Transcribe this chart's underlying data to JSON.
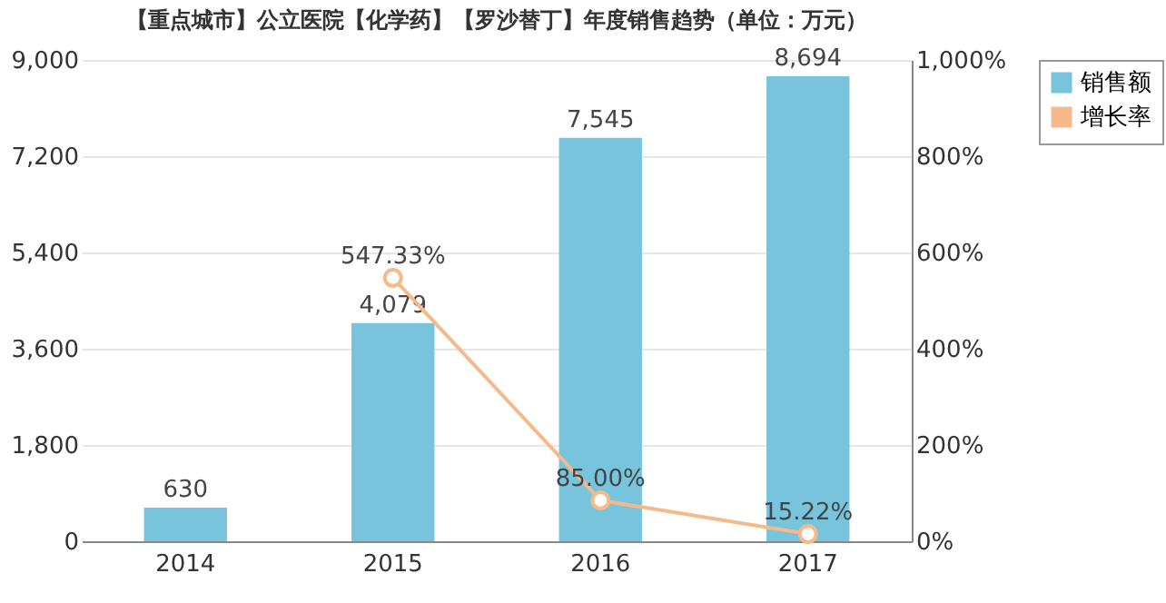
{
  "chart_data": {
    "type": "bar",
    "title": "【重点城市】公立医院【化学药】【罗沙替丁】年度销售趋势（单位：万元）",
    "categories": [
      "2014",
      "2015",
      "2016",
      "2017"
    ],
    "series": [
      {
        "name": "销售额",
        "color": "#77c4dc",
        "values": [
          630,
          4079,
          7545,
          8694
        ],
        "value_labels": [
          "630",
          "4,079",
          "7,545",
          "8,694"
        ]
      },
      {
        "name": "增长率",
        "type": "line",
        "axis": "y2",
        "color": "#f5b98a",
        "values": [
          null,
          547.33,
          85.0,
          15.22
        ],
        "value_labels": [
          null,
          "547.33%",
          "85.00%",
          "15.22%"
        ]
      }
    ],
    "ylim": [
      0,
      9000
    ],
    "yticks": [
      {
        "value": 0,
        "label": "0"
      },
      {
        "value": 1800,
        "label": "1,800"
      },
      {
        "value": 3600,
        "label": "3,600"
      },
      {
        "value": 5400,
        "label": "5,400"
      },
      {
        "value": 7200,
        "label": "7,200"
      },
      {
        "value": 9000,
        "label": "9,000"
      }
    ],
    "y2lim": [
      0,
      1000
    ],
    "y2ticks": [
      {
        "value": 0,
        "label": "0%"
      },
      {
        "value": 200,
        "label": "200%"
      },
      {
        "value": 400,
        "label": "400%"
      },
      {
        "value": 600,
        "label": "600%"
      },
      {
        "value": 800,
        "label": "800%"
      },
      {
        "value": 1000,
        "label": "1,000%"
      }
    ],
    "grid": "y",
    "legend": "right",
    "marker": "circle"
  }
}
